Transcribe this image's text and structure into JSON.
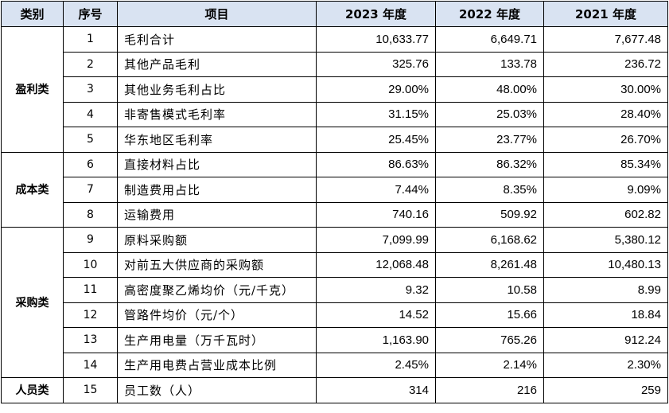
{
  "header": {
    "category": "类别",
    "no": "序号",
    "item": "项目",
    "y2023": "2023 年度",
    "y2022": "2022 年度",
    "y2021": "2021 年度"
  },
  "groups": [
    {
      "name": "盈利类",
      "rows": [
        {
          "no": "1",
          "item": "毛利合计",
          "y2023": "10,633.77",
          "y2022": "6,649.71",
          "y2021": "7,677.48"
        },
        {
          "no": "2",
          "item": "其他产品毛利",
          "y2023": "325.76",
          "y2022": "133.78",
          "y2021": "236.72"
        },
        {
          "no": "3",
          "item": "其他业务毛利占比",
          "y2023": "29.00%",
          "y2022": "48.00%",
          "y2021": "30.00%"
        },
        {
          "no": "4",
          "item": "非寄售模式毛利率",
          "y2023": "31.15%",
          "y2022": "25.03%",
          "y2021": "28.40%"
        },
        {
          "no": "5",
          "item": "华东地区毛利率",
          "y2023": "25.45%",
          "y2022": "23.77%",
          "y2021": "26.70%"
        }
      ]
    },
    {
      "name": "成本类",
      "rows": [
        {
          "no": "6",
          "item": "直接材料占比",
          "y2023": "86.63%",
          "y2022": "86.32%",
          "y2021": "85.34%"
        },
        {
          "no": "7",
          "item": "制造费用占比",
          "y2023": "7.44%",
          "y2022": "8.35%",
          "y2021": "9.09%"
        },
        {
          "no": "8",
          "item": "运输费用",
          "y2023": "740.16",
          "y2022": "509.92",
          "y2021": "602.82"
        }
      ]
    },
    {
      "name": "采购类",
      "rows": [
        {
          "no": "9",
          "item": "原料采购额",
          "y2023": "7,099.99",
          "y2022": "6,168.62",
          "y2021": "5,380.12"
        },
        {
          "no": "10",
          "item": "对前五大供应商的采购额",
          "y2023": "12,068.48",
          "y2022": "8,261.48",
          "y2021": "10,480.13"
        },
        {
          "no": "11",
          "item": "高密度聚乙烯均价（元/千克）",
          "y2023": "9.32",
          "y2022": "10.58",
          "y2021": "8.99"
        },
        {
          "no": "12",
          "item": "管路件均价（元/个）",
          "y2023": "14.52",
          "y2022": "15.66",
          "y2021": "18.84"
        },
        {
          "no": "13",
          "item": "生产用电量（万千瓦时）",
          "y2023": "1,163.90",
          "y2022": "765.26",
          "y2021": "912.24"
        },
        {
          "no": "14",
          "item": "生产用电费占营业成本比例",
          "y2023": "2.45%",
          "y2022": "2.14%",
          "y2021": "2.30%"
        }
      ]
    },
    {
      "name": "人员类",
      "rows": [
        {
          "no": "15",
          "item": "员工数（人）",
          "y2023": "314",
          "y2022": "216",
          "y2021": "259"
        }
      ]
    }
  ]
}
